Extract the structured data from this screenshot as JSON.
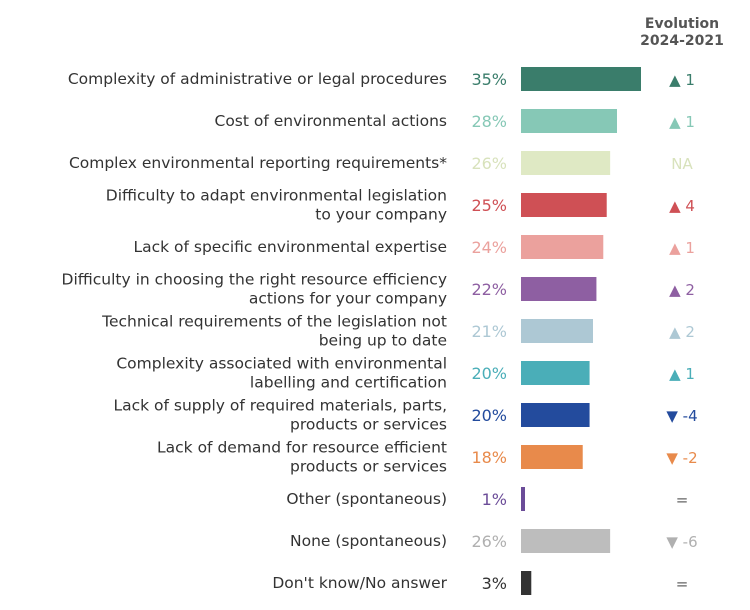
{
  "header": {
    "line1": "Evolution",
    "line2": "2024-2021"
  },
  "chart_data": {
    "type": "bar",
    "orientation": "horizontal",
    "categories": [
      [
        "Complexity of administrative or legal procedures"
      ],
      [
        "Cost of environmental actions"
      ],
      [
        "Complex environmental reporting requirements*"
      ],
      [
        "Difficulty to adapt environmental legislation",
        "to your company"
      ],
      [
        "Lack of specific environmental expertise"
      ],
      [
        "Difficulty in choosing the right resource efficiency",
        "actions for your company"
      ],
      [
        "Technical requirements of the legislation not",
        "being up to date"
      ],
      [
        "Complexity associated with environmental",
        "labelling and certification"
      ],
      [
        "Lack of supply of required materials, parts,",
        "products or services"
      ],
      [
        "Lack of demand for resource efficient",
        "products or services"
      ],
      [
        "Other (spontaneous)"
      ],
      [
        "None (spontaneous)"
      ],
      [
        "Don't know/No answer"
      ]
    ],
    "values": [
      35,
      28,
      26,
      25,
      24,
      22,
      21,
      20,
      20,
      18,
      1,
      26,
      3
    ],
    "value_labels": [
      "35%",
      "28%",
      "26%",
      "25%",
      "24%",
      "22%",
      "21%",
      "20%",
      "20%",
      "18%",
      "1%",
      "26%",
      "3%"
    ],
    "colors": [
      "#3a7d6b",
      "#86c8b6",
      "#dfe9c4",
      "#cf5055",
      "#eba19d",
      "#8e5fa2",
      "#adc8d4",
      "#4aaeb8",
      "#234b9d",
      "#e88a4b",
      "#6b4c98",
      "#bdbdbd",
      "#333333"
    ],
    "label_colors": [
      "#3a7d6b",
      "#86c8b6",
      "#d8e2bc",
      "#cf5055",
      "#eba19d",
      "#8e5fa2",
      "#adc8d4",
      "#4aaeb8",
      "#234b9d",
      "#e88a4b",
      "#6b4c98",
      "#b0b0b0",
      "#333333"
    ],
    "evolution": [
      {
        "arrow": "▲",
        "text": "1"
      },
      {
        "arrow": "▲",
        "text": "1"
      },
      {
        "arrow": "",
        "text": "NA"
      },
      {
        "arrow": "▲",
        "text": "4"
      },
      {
        "arrow": "▲",
        "text": "1"
      },
      {
        "arrow": "▲",
        "text": "2"
      },
      {
        "arrow": "▲",
        "text": "2"
      },
      {
        "arrow": "▲",
        "text": "1"
      },
      {
        "arrow": "▼",
        "text": "-4"
      },
      {
        "arrow": "▼",
        "text": "-2"
      },
      {
        "arrow": "",
        "text": "="
      },
      {
        "arrow": "▼",
        "text": "-6"
      },
      {
        "arrow": "",
        "text": "="
      }
    ],
    "xlim": [
      0,
      35
    ]
  }
}
